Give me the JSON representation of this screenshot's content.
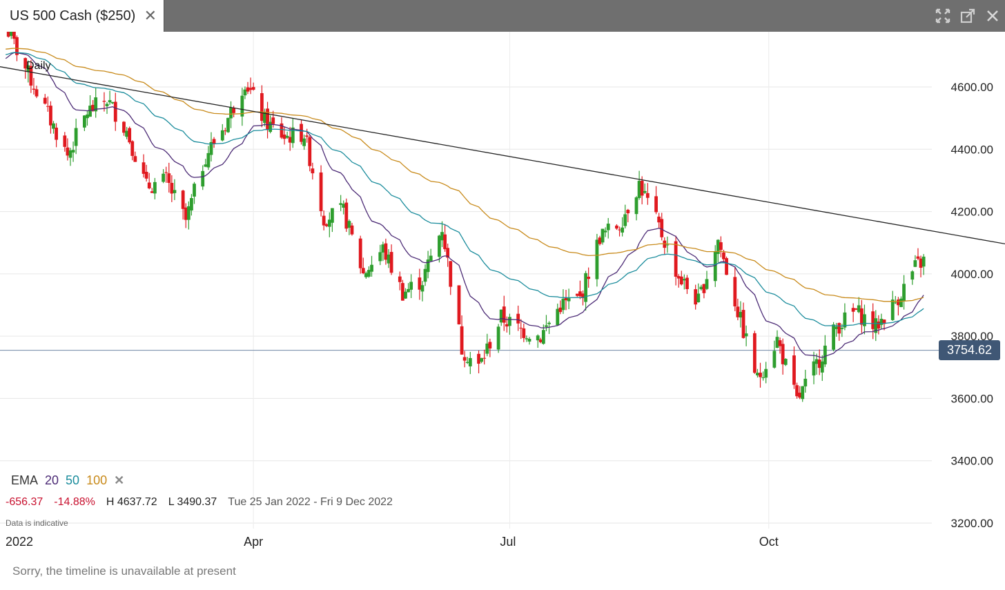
{
  "tab": {
    "title": "US 500 Cash ($250)",
    "close": "✕"
  },
  "window_icons": [
    "expand-icon",
    "popout-icon",
    "close-icon"
  ],
  "chart_data": {
    "type": "candlestick",
    "interval": "Daily",
    "y_ticks": [
      3200,
      3400,
      3600,
      3800,
      4000,
      4200,
      4400,
      4600
    ],
    "y_tick_labels": [
      "3200.00",
      "3400.00",
      "3600.00",
      "3800.00",
      "4000.00",
      "4200.00",
      "4400.00",
      "4600.00"
    ],
    "ylim": [
      3150,
      4700
    ],
    "x_tick_labels": [
      "2022",
      "Apr",
      "Jul",
      "Oct"
    ],
    "x_tick_dates": [
      "2022-01-01",
      "2022-04-01",
      "2022-07-01",
      "2022-10-01"
    ],
    "xlim": [
      "2022-01-01",
      "2022-12-31"
    ],
    "grid": true,
    "current_price": "3754.62",
    "current_price_value": 3754.62,
    "trendline": {
      "start": [
        "2022-01-01",
        4665
      ],
      "end": [
        "2022-12-31",
        4085
      ]
    },
    "close_path": [
      [
        "2022-01-03",
        4796
      ],
      [
        "2022-01-10",
        4660
      ],
      [
        "2022-01-17",
        4530
      ],
      [
        "2022-01-25",
        4380
      ],
      [
        "2022-02-01",
        4520
      ],
      [
        "2022-02-08",
        4560
      ],
      [
        "2022-02-15",
        4460
      ],
      [
        "2022-02-22",
        4280
      ],
      [
        "2022-03-01",
        4300
      ],
      [
        "2022-03-08",
        4170
      ],
      [
        "2022-03-15",
        4380
      ],
      [
        "2022-03-22",
        4480
      ],
      [
        "2022-03-29",
        4620
      ],
      [
        "2022-04-05",
        4490
      ],
      [
        "2022-04-12",
        4440
      ],
      [
        "2022-04-19",
        4450
      ],
      [
        "2022-04-26",
        4180
      ],
      [
        "2022-05-03",
        4200
      ],
      [
        "2022-05-10",
        4000
      ],
      [
        "2022-05-17",
        4080
      ],
      [
        "2022-05-24",
        3940
      ],
      [
        "2022-05-31",
        3980
      ],
      [
        "2022-06-07",
        4150
      ],
      [
        "2022-06-14",
        3760
      ],
      [
        "2022-06-20",
        3700
      ],
      [
        "2022-06-28",
        3860
      ],
      [
        "2022-07-05",
        3820
      ],
      [
        "2022-07-12",
        3800
      ],
      [
        "2022-07-19",
        3900
      ],
      [
        "2022-07-26",
        3920
      ],
      [
        "2022-08-02",
        4120
      ],
      [
        "2022-08-09",
        4160
      ],
      [
        "2022-08-16",
        4290
      ],
      [
        "2022-08-23",
        4150
      ],
      [
        "2022-08-30",
        3990
      ],
      [
        "2022-09-06",
        3910
      ],
      [
        "2022-09-13",
        4110
      ],
      [
        "2022-09-20",
        3880
      ],
      [
        "2022-09-27",
        3660
      ],
      [
        "2022-10-04",
        3790
      ],
      [
        "2022-10-11",
        3590
      ],
      [
        "2022-10-18",
        3710
      ],
      [
        "2022-10-25",
        3830
      ],
      [
        "2022-11-01",
        3880
      ],
      [
        "2022-11-08",
        3830
      ],
      [
        "2022-11-15",
        3910
      ],
      [
        "2022-11-22",
        4020
      ],
      [
        "2022-11-30",
        4080
      ],
      [
        "2022-12-05",
        3990
      ],
      [
        "2022-12-09",
        3935
      ]
    ],
    "ema": {
      "label": "EMA",
      "periods": [
        "20",
        "50",
        "100"
      ],
      "colors": {
        "20": "#4b2a75",
        "50": "#1a8c9c",
        "100": "#c88a1a"
      }
    },
    "up_color": "#2e9e2e",
    "down_color": "#e0191f",
    "stats": {
      "change": "-656.37",
      "change_pct": "-14.88%",
      "high": "H 4637.72",
      "low": "L 3490.37",
      "range": "Tue 25 Jan 2022 - Fri 9 Dec 2022"
    }
  },
  "note": "Data is indicative",
  "timeline_message": "Sorry, the timeline is unavailable at present"
}
